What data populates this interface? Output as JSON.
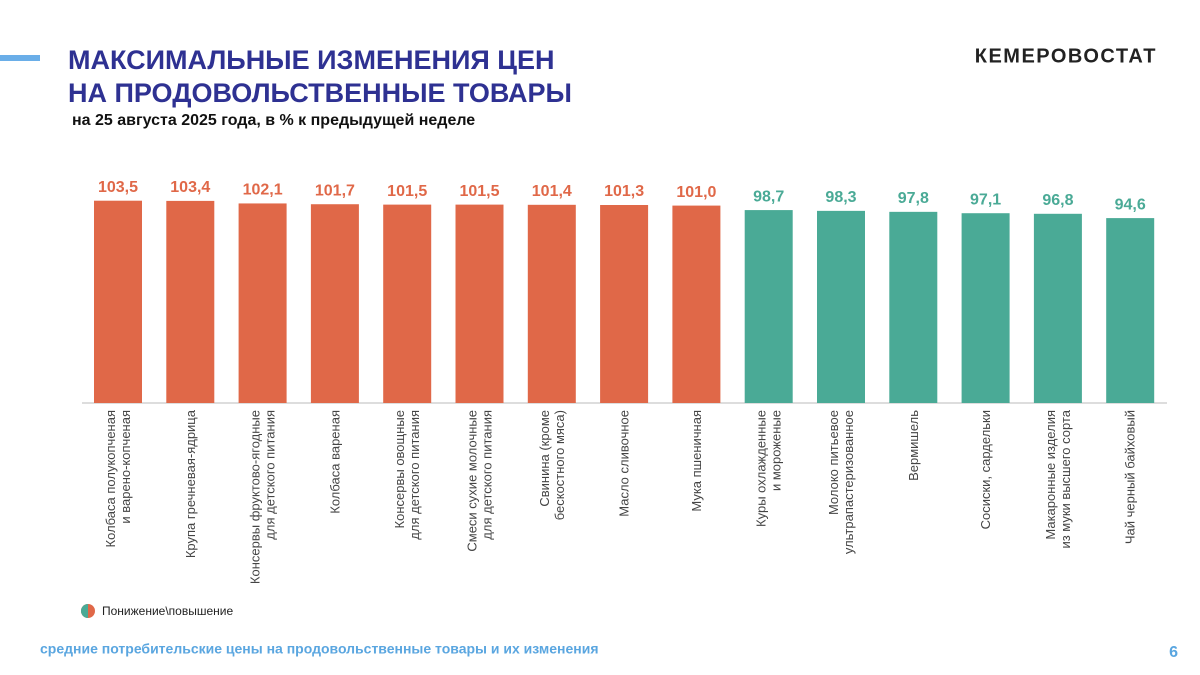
{
  "header": {
    "title_line1": "МАКСИМАЛЬНЫЕ ИЗМЕНЕНИЯ ЦЕН",
    "title_line2": "НА ПРОДОВОЛЬСТВЕННЫЕ ТОВАРЫ",
    "subtitle": "на 25 августа 2025 года, в % к предыдущей неделе",
    "brand": "КЕМЕРОВОСТАТ"
  },
  "chart_data": {
    "type": "bar",
    "categories": [
      "Колбаса полукопченая\nи варено-копченая",
      "Крупа гречневая-ядрица",
      "Консервы фруктово-ягодные\nдля детского питания",
      "Колбаса вареная",
      "Консервы овощные\nдля детского питания",
      "Смеси сухие молочные\nдля детского питания",
      "Свинина (кроме\nбескостного мяса)",
      "Масло сливочное",
      "Мука пшеничная",
      "Куры охлажденные\nи мороженые",
      "Молоко питьевое\nультрапастеризованное",
      "Вермишель",
      "Сосиски, сардельки",
      "Макаронные изделия\nиз муки высшего сорта",
      "Чай черный байховый"
    ],
    "values": [
      103.5,
      103.4,
      102.1,
      101.7,
      101.5,
      101.5,
      101.4,
      101.3,
      101.0,
      98.7,
      98.3,
      97.8,
      97.1,
      96.8,
      94.6
    ],
    "value_labels": [
      "103,5",
      "103,4",
      "102,1",
      "101,7",
      "101,5",
      "101,5",
      "101,4",
      "101,3",
      "101,0",
      "98,7",
      "98,3",
      "97,8",
      "97,1",
      "96,8",
      "94,6"
    ],
    "colors": [
      "#e06848",
      "#e06848",
      "#e06848",
      "#e06848",
      "#e06848",
      "#e06848",
      "#e06848",
      "#e06848",
      "#e06848",
      "#4aaa96",
      "#4aaa96",
      "#4aaa96",
      "#4aaa96",
      "#4aaa96",
      "#4aaa96"
    ],
    "legend_label": "Понижение\\повышение",
    "ylim": [
      0,
      110
    ]
  },
  "footer": {
    "text": "средние потребительские цены на продовольственные товары и их изменения",
    "page": "6"
  }
}
